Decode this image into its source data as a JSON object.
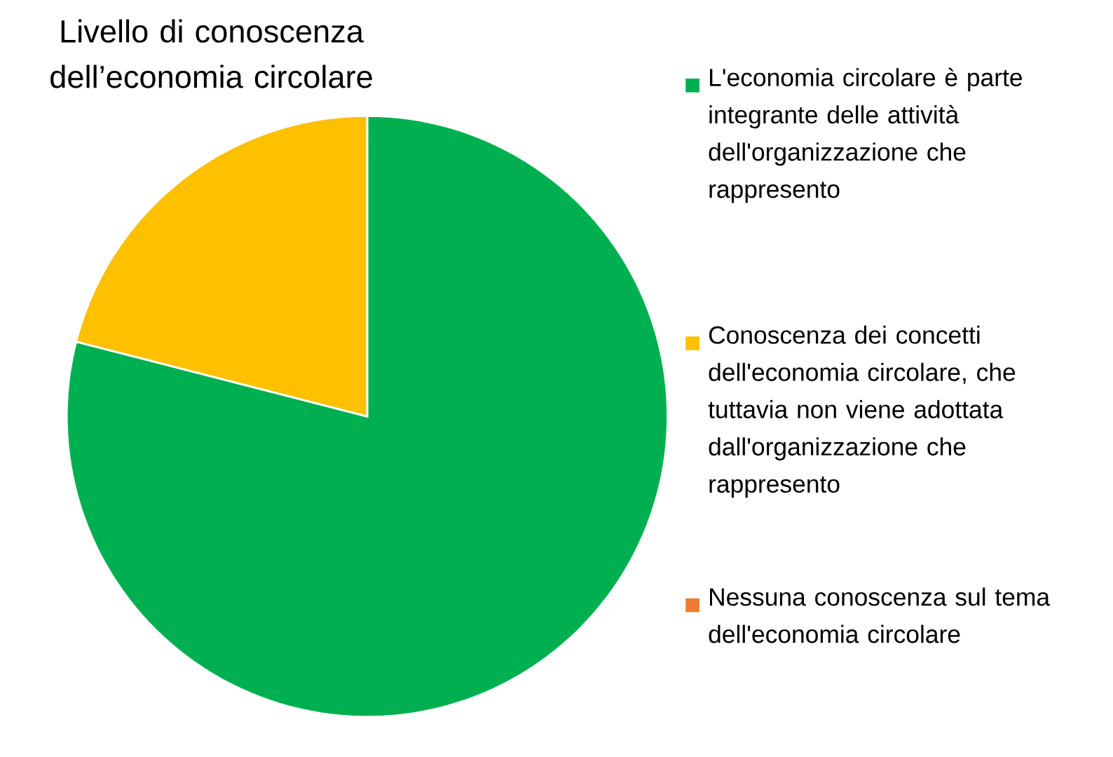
{
  "chart_data": {
    "type": "pie",
    "title": "Livello di conoscenza dell’economia circolare",
    "categories": [
      "L'economia circolare è parte integrante delle attività dell'organizzazione che rappresento",
      "Conoscenza dei concetti dell'economia circolare, che tuttavia non viene adottata dall'organizzazione che rappresento",
      "Nessuna conoscenza sul tema dell'economia circolare"
    ],
    "values": [
      79,
      21,
      0
    ],
    "colors": [
      "#00b050",
      "#ffc000",
      "#ed7d31"
    ],
    "legend": "right"
  }
}
